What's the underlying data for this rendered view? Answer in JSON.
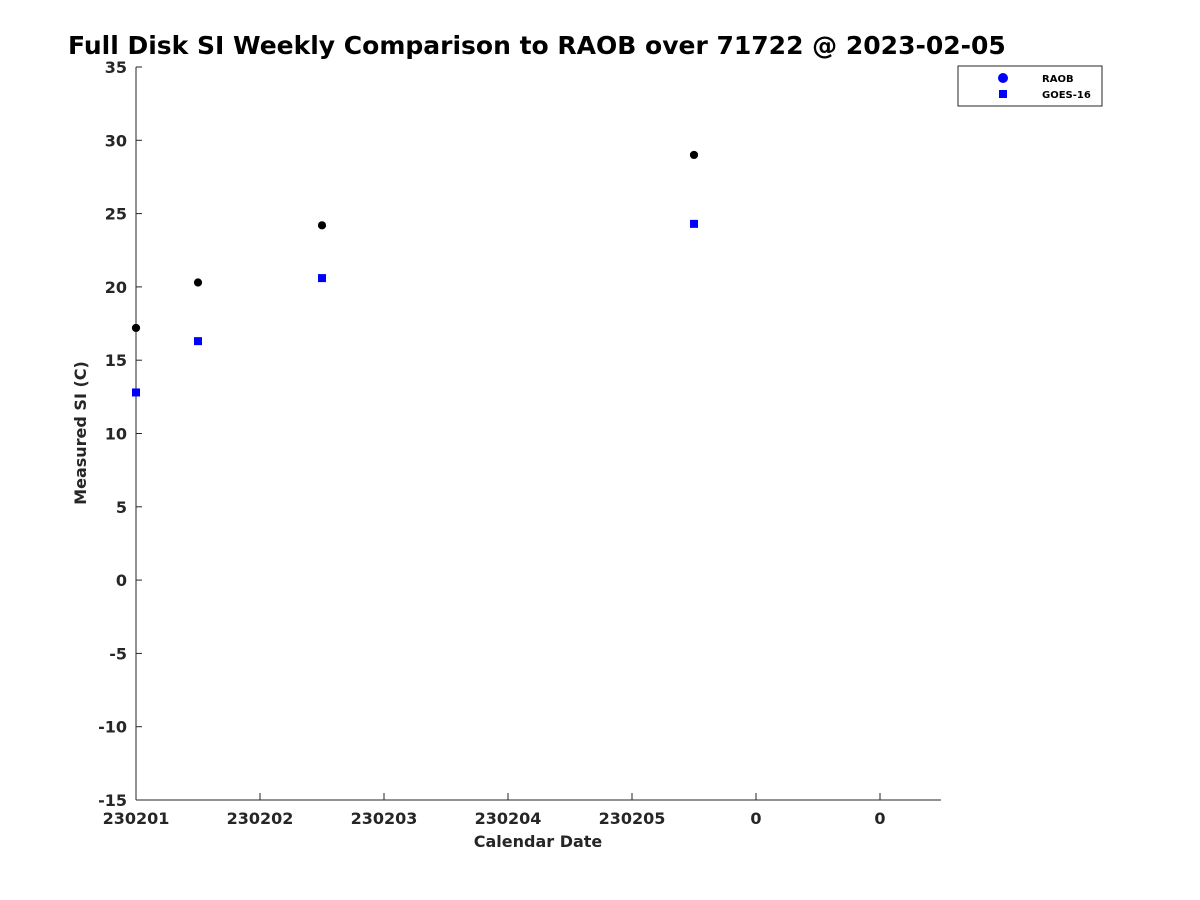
{
  "chart_data": {
    "type": "scatter",
    "title": "Full Disk SI Weekly Comparison to RAOB over 71722 @ 2023-02-05",
    "xlabel": "Calendar Date",
    "ylabel": "Measured SI (C)",
    "xlim": [
      0,
      6.5
    ],
    "ylim": [
      -15,
      35
    ],
    "x_ticks": [
      {
        "pos": 0,
        "label": "230201"
      },
      {
        "pos": 1,
        "label": "230202"
      },
      {
        "pos": 2,
        "label": "230203"
      },
      {
        "pos": 3,
        "label": "230204"
      },
      {
        "pos": 4,
        "label": "230205"
      },
      {
        "pos": 5,
        "label": "0"
      },
      {
        "pos": 6,
        "label": "0"
      }
    ],
    "y_ticks": [
      35,
      30,
      25,
      20,
      15,
      10,
      5,
      0,
      -5,
      -10,
      -15
    ],
    "grid": false,
    "legend_position": "top-right",
    "series": [
      {
        "name": "RAOB",
        "marker": "circle",
        "color": "#000000",
        "legend_color": "#0000ff",
        "x": [
          0,
          0.5,
          1.5,
          4.5
        ],
        "values": [
          17.2,
          20.3,
          24.2,
          29.0
        ]
      },
      {
        "name": "GOES-16",
        "marker": "square",
        "color": "#0000ff",
        "legend_color": "#0000ff",
        "x": [
          0,
          0.5,
          1.5,
          4.5
        ],
        "values": [
          12.8,
          16.3,
          20.6,
          24.3
        ]
      }
    ]
  }
}
